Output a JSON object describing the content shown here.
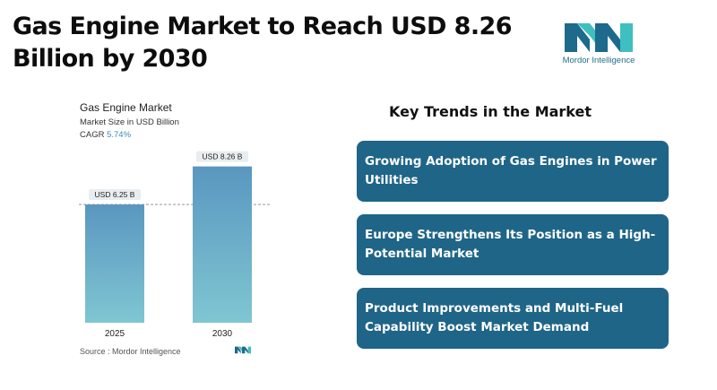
{
  "headline": "Gas Engine Market to Reach USD 8.26 Billion by 2030",
  "logo": {
    "text": "Mordor Intelligence",
    "icon": "mordor-intelligence-logo-icon",
    "colors": {
      "dark": "#1d6a8c",
      "light": "#3fbfbf"
    }
  },
  "chart_data": {
    "type": "bar",
    "title": "Gas Engine Market",
    "subtitle": "Market Size in USD Billion",
    "cagr_label": "CAGR",
    "cagr_value": "5.74%",
    "categories": [
      "2025",
      "2030"
    ],
    "values": [
      6.25,
      8.26
    ],
    "data_labels": [
      "USD 6.25 B",
      "USD 8.26 B"
    ],
    "ylim": [
      0,
      9
    ],
    "reference_line": 6.25,
    "grid": false,
    "colors": {
      "bar_top": "#5a97c0",
      "bar_bottom": "#7fc6d2",
      "label_bg": "#e9edf0"
    }
  },
  "source": "Source :  Mordor Intelligence",
  "trends": {
    "title": "Key Trends in the Market",
    "items": [
      "Growing Adoption of Gas Engines in Power Utilities",
      "Europe Strengthens Its Position as a High-Potential Market",
      "Product Improvements and Multi-Fuel Capability Boost Market Demand"
    ],
    "color": "#1f6587"
  }
}
